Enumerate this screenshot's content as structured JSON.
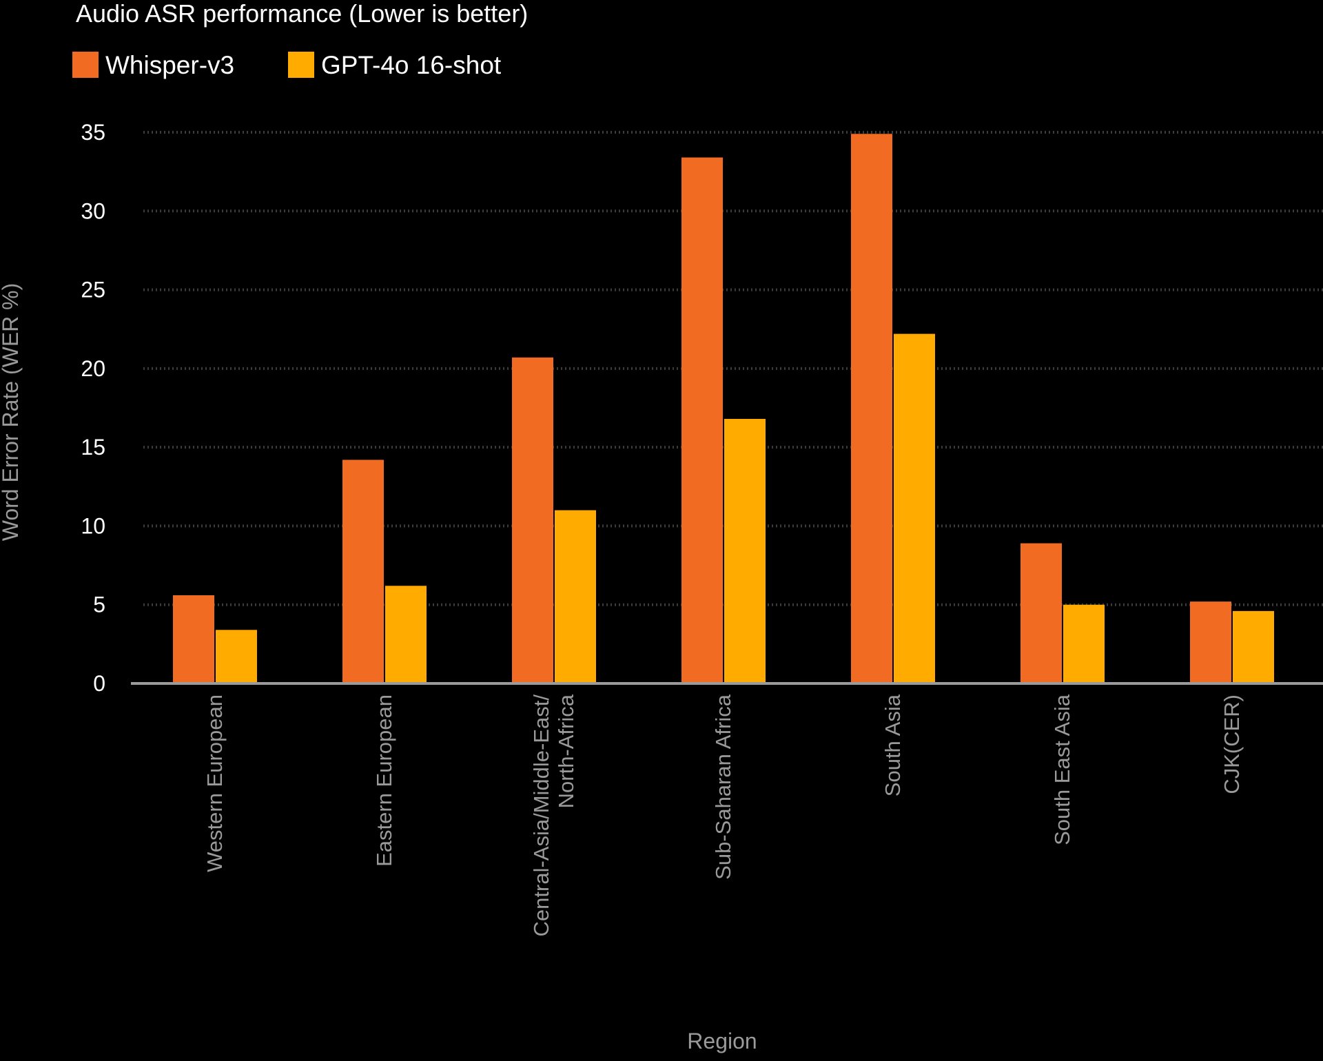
{
  "chart_data": {
    "type": "bar",
    "title": "Audio ASR performance (Lower is better)",
    "xlabel": "Region",
    "ylabel": "Word Error Rate (WER %)",
    "ylim": [
      0,
      35
    ],
    "yticks": [
      0,
      5,
      10,
      15,
      20,
      25,
      30,
      35
    ],
    "grid": true,
    "legend_position": "top-left",
    "categories": [
      [
        "Western European"
      ],
      [
        "Eastern European"
      ],
      [
        "Central-Asia/Middle-East/",
        "North-Africa"
      ],
      [
        "Sub-Saharan Africa"
      ],
      [
        "South Asia"
      ],
      [
        "South East Asia"
      ],
      [
        "CJK(CER)"
      ]
    ],
    "series": [
      {
        "name": "Whisper-v3",
        "color": "#f26b22",
        "values": [
          5.6,
          14.2,
          20.7,
          33.4,
          34.9,
          8.9,
          5.2
        ]
      },
      {
        "name": "GPT-4o 16-shot",
        "color": "#ffab00",
        "values": [
          3.4,
          6.2,
          11.0,
          16.8,
          22.2,
          5.0,
          4.6
        ]
      }
    ]
  }
}
